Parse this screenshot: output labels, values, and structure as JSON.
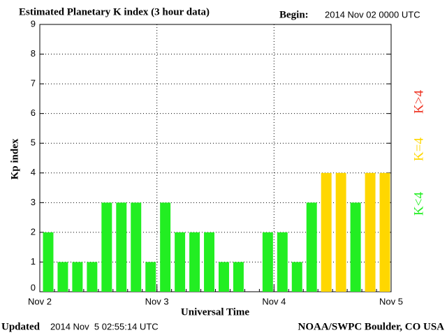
{
  "chart_data": {
    "type": "bar",
    "title": "Estimated Planetary K index (3 hour data)",
    "begin_label": "Begin:",
    "begin_time": "2014 Nov 02 0000 UTC",
    "updated_label": "Updated",
    "updated_time": "2014 Nov  5 02:55:14 UTC",
    "source": "NOAA/SWPC Boulder, CO USA",
    "x_label": "Universal Time",
    "y_label": "Kp index",
    "categories": [
      null,
      null,
      null,
      null,
      null,
      null,
      null,
      null,
      null,
      null,
      null,
      null,
      null,
      null,
      null,
      null,
      null,
      null,
      null,
      null,
      null,
      null,
      null,
      null
    ],
    "values": [
      2,
      1,
      1,
      1,
      3,
      3,
      3,
      1,
      3,
      2,
      2,
      2,
      1,
      1,
      null,
      2,
      2,
      1,
      3,
      4,
      4,
      3,
      4,
      4
    ],
    "bar_colors": [
      "#22ee22",
      "#22ee22",
      "#22ee22",
      "#22ee22",
      "#22ee22",
      "#22ee22",
      "#22ee22",
      "#22ee22",
      "#22ee22",
      "#22ee22",
      "#22ee22",
      "#22ee22",
      "#22ee22",
      "#22ee22",
      "#22ee22",
      "#22ee22",
      "#22ee22",
      "#22ee22",
      "#22ee22",
      "#ffd700",
      "#ffd700",
      "#22ee22",
      "#ffd700",
      "#ffd700"
    ],
    "legend": [
      {
        "name": "K<4",
        "color": "#22ee22"
      },
      {
        "name": "K=4",
        "color": "#ffd700"
      },
      {
        "name": "K>4",
        "color": "#ee3322"
      }
    ],
    "xlim": [
      0,
      24
    ],
    "xticks": [
      {
        "value": 0,
        "label": "Nov 2"
      },
      {
        "value": 8,
        "label": "Nov 3"
      },
      {
        "value": 16,
        "label": "Nov 4"
      },
      {
        "value": 24,
        "label": "Nov 5"
      }
    ],
    "ylim": [
      0,
      9
    ],
    "yticks": [
      0,
      1,
      2,
      3,
      4,
      5,
      6,
      7,
      8,
      9
    ],
    "grid": true
  }
}
